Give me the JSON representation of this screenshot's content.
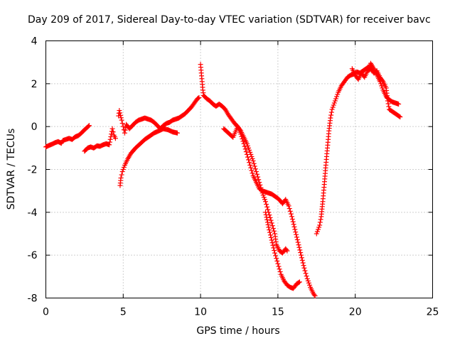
{
  "chart_data": {
    "type": "scatter",
    "title": "Day 209 of 2017, Sidereal Day-to-day VTEC variation (SDTVAR) for receiver bavc",
    "xlabel": "GPS time / hours",
    "ylabel": "SDTVAR / TECUs",
    "xlim": [
      0,
      25
    ],
    "ylim": [
      -8,
      4
    ],
    "x_ticks": [
      "0",
      "5",
      "10",
      "15",
      "20",
      "25"
    ],
    "y_ticks": [
      "-8",
      "-6",
      "-4",
      "-2",
      "0",
      "2",
      "4"
    ],
    "grid": true,
    "marker": "+",
    "color": "#ff0000",
    "series": [
      {
        "points": [
          [
            0.0,
            -0.95
          ],
          [
            0.2,
            -0.88
          ],
          [
            0.4,
            -0.82
          ],
          [
            0.6,
            -0.75
          ],
          [
            0.8,
            -0.7
          ],
          [
            1.0,
            -0.78
          ],
          [
            1.1,
            -0.65
          ],
          [
            1.3,
            -0.6
          ],
          [
            1.5,
            -0.55
          ],
          [
            1.7,
            -0.6
          ],
          [
            1.9,
            -0.48
          ],
          [
            2.1,
            -0.42
          ],
          [
            2.3,
            -0.3
          ],
          [
            2.5,
            -0.15
          ],
          [
            2.7,
            -0.02
          ],
          [
            2.8,
            0.05
          ],
          [
            2.5,
            -1.15
          ],
          [
            2.7,
            -1.0
          ],
          [
            2.9,
            -0.95
          ],
          [
            3.1,
            -1.0
          ],
          [
            3.3,
            -0.9
          ],
          [
            3.5,
            -0.92
          ],
          [
            3.7,
            -0.85
          ],
          [
            3.9,
            -0.8
          ],
          [
            4.1,
            -0.85
          ],
          [
            4.3,
            -0.1
          ],
          [
            4.4,
            -0.4
          ],
          [
            4.5,
            -0.55
          ],
          [
            4.8,
            -2.75
          ],
          [
            4.85,
            -2.4
          ],
          [
            4.95,
            -2.1
          ],
          [
            5.1,
            -1.8
          ],
          [
            5.3,
            -1.5
          ],
          [
            5.5,
            -1.25
          ],
          [
            5.8,
            -1.0
          ],
          [
            6.1,
            -0.8
          ],
          [
            6.4,
            -0.6
          ],
          [
            6.7,
            -0.45
          ],
          [
            7.0,
            -0.3
          ],
          [
            7.3,
            -0.2
          ],
          [
            7.6,
            -0.1
          ],
          [
            7.9,
            -0.15
          ],
          [
            8.2,
            -0.25
          ],
          [
            8.5,
            -0.3
          ],
          [
            4.7,
            0.5
          ],
          [
            4.75,
            0.75
          ],
          [
            4.9,
            0.3
          ],
          [
            5.0,
            0.0
          ],
          [
            5.1,
            -0.3
          ],
          [
            5.2,
            0.1
          ],
          [
            5.4,
            -0.1
          ],
          [
            5.6,
            0.05
          ],
          [
            5.8,
            0.2
          ],
          [
            6.0,
            0.3
          ],
          [
            6.2,
            0.35
          ],
          [
            6.4,
            0.4
          ],
          [
            6.6,
            0.35
          ],
          [
            6.8,
            0.3
          ],
          [
            7.0,
            0.2
          ],
          [
            7.2,
            0.05
          ],
          [
            7.4,
            -0.1
          ],
          [
            7.6,
            0.05
          ],
          [
            7.8,
            0.15
          ],
          [
            8.0,
            0.2
          ],
          [
            8.2,
            0.3
          ],
          [
            8.4,
            0.35
          ],
          [
            8.6,
            0.4
          ],
          [
            8.8,
            0.5
          ],
          [
            9.0,
            0.6
          ],
          [
            9.2,
            0.75
          ],
          [
            9.4,
            0.9
          ],
          [
            9.6,
            1.1
          ],
          [
            9.8,
            1.3
          ],
          [
            9.9,
            1.35
          ],
          [
            10.0,
            2.9
          ],
          [
            10.05,
            2.5
          ],
          [
            10.1,
            2.1
          ],
          [
            10.15,
            1.7
          ],
          [
            10.2,
            1.45
          ],
          [
            10.4,
            1.3
          ],
          [
            10.6,
            1.2
          ],
          [
            10.8,
            1.05
          ],
          [
            11.0,
            0.95
          ],
          [
            11.2,
            1.05
          ],
          [
            11.4,
            0.95
          ],
          [
            11.6,
            0.8
          ],
          [
            11.8,
            0.55
          ],
          [
            12.0,
            0.35
          ],
          [
            12.2,
            0.15
          ],
          [
            12.4,
            0.0
          ],
          [
            12.6,
            -0.35
          ],
          [
            12.8,
            -0.8
          ],
          [
            13.0,
            -1.3
          ],
          [
            13.2,
            -1.8
          ],
          [
            13.4,
            -2.3
          ],
          [
            13.6,
            -2.6
          ],
          [
            13.8,
            -2.9
          ],
          [
            14.0,
            -3.0
          ],
          [
            14.2,
            -3.05
          ],
          [
            14.4,
            -3.1
          ],
          [
            14.6,
            -3.15
          ],
          [
            14.8,
            -3.25
          ],
          [
            15.0,
            -3.35
          ],
          [
            15.2,
            -3.5
          ],
          [
            15.3,
            -3.6
          ],
          [
            15.5,
            -3.4
          ],
          [
            15.7,
            -3.7
          ],
          [
            15.9,
            -4.2
          ],
          [
            16.1,
            -4.8
          ],
          [
            16.3,
            -5.4
          ],
          [
            16.5,
            -6.0
          ],
          [
            16.7,
            -6.6
          ],
          [
            16.9,
            -7.1
          ],
          [
            17.1,
            -7.5
          ],
          [
            17.3,
            -7.8
          ],
          [
            17.4,
            -7.9
          ],
          [
            11.5,
            -0.1
          ],
          [
            11.8,
            -0.3
          ],
          [
            12.1,
            -0.5
          ],
          [
            12.4,
            0.0
          ],
          [
            12.6,
            -0.2
          ],
          [
            12.8,
            -0.5
          ],
          [
            13.0,
            -0.8
          ],
          [
            13.2,
            -1.2
          ],
          [
            13.4,
            -1.6
          ],
          [
            13.6,
            -2.1
          ],
          [
            13.8,
            -2.6
          ],
          [
            14.0,
            -3.1
          ],
          [
            14.2,
            -3.5
          ],
          [
            14.4,
            -4.0
          ],
          [
            14.6,
            -4.5
          ],
          [
            14.8,
            -5.0
          ],
          [
            14.9,
            -5.5
          ],
          [
            15.1,
            -5.8
          ],
          [
            15.3,
            -5.9
          ],
          [
            15.5,
            -5.7
          ],
          [
            15.6,
            -5.8
          ],
          [
            14.2,
            -4.0
          ],
          [
            14.4,
            -4.7
          ],
          [
            14.6,
            -5.3
          ],
          [
            14.8,
            -5.9
          ],
          [
            15.0,
            -6.4
          ],
          [
            15.2,
            -6.9
          ],
          [
            15.4,
            -7.2
          ],
          [
            15.6,
            -7.4
          ],
          [
            15.8,
            -7.5
          ],
          [
            16.0,
            -7.55
          ],
          [
            16.2,
            -7.35
          ],
          [
            16.4,
            -7.25
          ],
          [
            17.5,
            -5.0
          ],
          [
            17.6,
            -4.8
          ],
          [
            17.7,
            -4.6
          ],
          [
            17.8,
            -4.2
          ],
          [
            17.9,
            -3.5
          ],
          [
            18.0,
            -2.7
          ],
          [
            18.1,
            -1.8
          ],
          [
            18.2,
            -1.0
          ],
          [
            18.3,
            -0.2
          ],
          [
            18.4,
            0.4
          ],
          [
            18.5,
            0.8
          ],
          [
            18.7,
            1.2
          ],
          [
            18.9,
            1.6
          ],
          [
            19.1,
            1.9
          ],
          [
            19.3,
            2.1
          ],
          [
            19.5,
            2.3
          ],
          [
            19.7,
            2.4
          ],
          [
            19.9,
            2.45
          ],
          [
            20.1,
            2.55
          ],
          [
            20.3,
            2.5
          ],
          [
            20.5,
            2.6
          ],
          [
            20.7,
            2.7
          ],
          [
            20.9,
            2.8
          ],
          [
            21.0,
            2.95
          ],
          [
            21.2,
            2.7
          ],
          [
            21.4,
            2.4
          ],
          [
            21.6,
            2.1
          ],
          [
            21.8,
            1.7
          ],
          [
            22.0,
            1.4
          ],
          [
            22.2,
            1.25
          ],
          [
            22.4,
            1.15
          ],
          [
            22.6,
            1.1
          ],
          [
            22.8,
            1.05
          ],
          [
            19.8,
            2.7
          ],
          [
            20.0,
            2.4
          ],
          [
            20.2,
            2.2
          ],
          [
            20.4,
            2.5
          ],
          [
            20.6,
            2.3
          ],
          [
            20.8,
            2.6
          ],
          [
            21.0,
            2.7
          ],
          [
            21.2,
            2.5
          ],
          [
            21.4,
            2.6
          ],
          [
            21.6,
            2.3
          ],
          [
            21.8,
            2.1
          ],
          [
            22.0,
            1.8
          ],
          [
            22.1,
            1.2
          ],
          [
            22.2,
            0.8
          ],
          [
            22.4,
            0.7
          ],
          [
            22.6,
            0.6
          ],
          [
            22.8,
            0.5
          ],
          [
            22.9,
            0.45
          ]
        ]
      }
    ]
  }
}
